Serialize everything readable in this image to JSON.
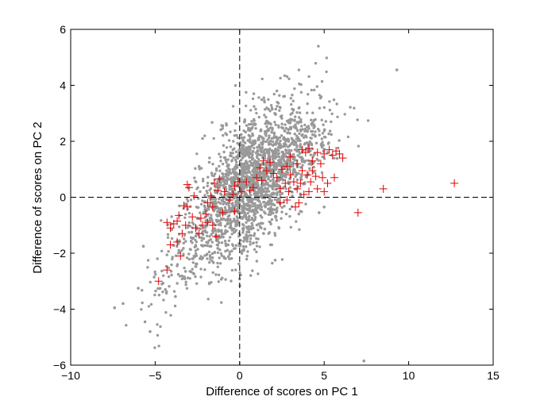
{
  "chart_data": {
    "type": "scatter",
    "title": "",
    "xlabel": "Difference of scores on PC 1",
    "ylabel": "Difference of scores on PC 2",
    "xlim": [
      -10,
      15
    ],
    "ylim": [
      -6,
      6
    ],
    "x_ticks": [
      -10,
      -5,
      0,
      5,
      10,
      15
    ],
    "y_ticks": [
      -6,
      -4,
      -2,
      0,
      2,
      4,
      6
    ],
    "grid": false,
    "legend": "none",
    "reference_lines": [
      {
        "orientation": "vertical",
        "value": 0,
        "style": "dashed",
        "color": "#000000"
      },
      {
        "orientation": "horizontal",
        "value": 0,
        "style": "dashed",
        "color": "#000000"
      }
    ],
    "series": [
      {
        "marker": "dot",
        "color": "#999999",
        "points": [
          [
            9.3,
            4.55
          ],
          [
            7.35,
            -5.85
          ],
          [
            -7.4,
            -3.95
          ],
          [
            -6.9,
            -3.8
          ],
          [
            -5.3,
            -4.8
          ],
          [
            -5.6,
            -4.45
          ],
          [
            -6.0,
            -3.25
          ],
          [
            -5.7,
            -1.75
          ],
          [
            -3.8,
            -3.55
          ],
          [
            -4.6,
            -3.1
          ],
          [
            -4.4,
            -3.3
          ],
          [
            2.2,
            3.8
          ],
          [
            2.6,
            3.6
          ],
          [
            3.6,
            2.7
          ],
          [
            4.4,
            2.75
          ],
          [
            1.7,
            3.15
          ],
          [
            -2.2,
            2.1
          ],
          [
            -1.0,
            2.55
          ],
          [
            3.9,
            2.2
          ],
          [
            5.2,
            1.6
          ],
          [
            5.0,
            -0.35
          ],
          [
            4.7,
            -0.55
          ],
          [
            3.5,
            -0.6
          ],
          [
            2.1,
            -2.25
          ],
          [
            1.9,
            -1.7
          ],
          [
            -0.6,
            -2.2
          ],
          [
            -1.7,
            -1.75
          ],
          [
            -3.2,
            -2.65
          ],
          [
            -2.7,
            -2.1
          ],
          [
            -3.6,
            -1.9
          ],
          [
            -2.4,
            1.1
          ],
          [
            -1.8,
            1.25
          ],
          [
            1.5,
            2.35
          ],
          [
            3.0,
            2.5
          ]
        ]
      },
      {
        "marker": "plus",
        "color": "#e00000",
        "points": [
          [
            12.7,
            0.5
          ],
          [
            8.5,
            0.3
          ],
          [
            7.0,
            -0.55
          ],
          [
            6.1,
            1.4
          ],
          [
            5.9,
            1.55
          ],
          [
            5.7,
            1.65
          ],
          [
            5.5,
            1.5
          ],
          [
            5.3,
            1.7
          ],
          [
            5.0,
            1.55
          ],
          [
            4.8,
            1.2
          ],
          [
            4.6,
            1.6
          ],
          [
            4.3,
            1.3
          ],
          [
            4.1,
            1.75
          ],
          [
            3.9,
            1.6
          ],
          [
            3.7,
            1.7
          ],
          [
            5.6,
            0.7
          ],
          [
            5.2,
            0.5
          ],
          [
            4.9,
            0.7
          ],
          [
            4.5,
            0.75
          ],
          [
            4.3,
            0.95
          ],
          [
            4.0,
            0.8
          ],
          [
            3.7,
            0.95
          ],
          [
            3.4,
            1.2
          ],
          [
            3.0,
            1.45
          ],
          [
            2.8,
            1.1
          ],
          [
            2.5,
            1.0
          ],
          [
            2.2,
            0.7
          ],
          [
            2.0,
            0.85
          ],
          [
            1.8,
            1.25
          ],
          [
            1.6,
            0.95
          ],
          [
            1.3,
            0.6
          ],
          [
            1.0,
            0.7
          ],
          [
            0.8,
            0.35
          ],
          [
            0.6,
            0.25
          ],
          [
            0.4,
            0.55
          ],
          [
            3.2,
            0.55
          ],
          [
            3.0,
            0.8
          ],
          [
            2.7,
            0.5
          ],
          [
            2.4,
            0.3
          ],
          [
            2.9,
            0.2
          ],
          [
            3.4,
            0.3
          ],
          [
            3.6,
            0.5
          ],
          [
            3.8,
            0.1
          ],
          [
            4.1,
            0.2
          ],
          [
            3.5,
            -0.2
          ],
          [
            3.3,
            -0.35
          ],
          [
            2.8,
            -0.1
          ],
          [
            2.4,
            -0.2
          ],
          [
            4.2,
            0.55
          ],
          [
            4.6,
            0.3
          ],
          [
            5.0,
            0.2
          ],
          [
            1.4,
            1.3
          ],
          [
            1.2,
            1.05
          ],
          [
            0.1,
            0.2
          ],
          [
            -0.1,
            0.55
          ],
          [
            -0.4,
            0.1
          ],
          [
            -0.3,
            -0.5
          ],
          [
            -0.6,
            -0.1
          ],
          [
            -0.9,
            0.2
          ],
          [
            -1.3,
            0.25
          ],
          [
            -1.5,
            0.5
          ],
          [
            -1.2,
            0.65
          ],
          [
            -1.7,
            0.05
          ],
          [
            -1.9,
            -0.2
          ],
          [
            -2.0,
            -0.6
          ],
          [
            -2.3,
            -0.75
          ],
          [
            -2.6,
            -1.1
          ],
          [
            -3.0,
            0.35
          ],
          [
            -3.1,
            0.45
          ],
          [
            -3.1,
            -0.35
          ],
          [
            -3.3,
            -0.3
          ],
          [
            -3.6,
            -0.65
          ],
          [
            -3.7,
            -0.85
          ],
          [
            -3.9,
            -0.95
          ],
          [
            -4.1,
            -1.1
          ],
          [
            -4.3,
            -0.9
          ],
          [
            -4.1,
            -1.7
          ],
          [
            -3.7,
            -1.6
          ],
          [
            -3.4,
            -1.3
          ],
          [
            -3.2,
            -1.0
          ],
          [
            -2.4,
            -1.3
          ],
          [
            -2.2,
            -1.0
          ],
          [
            -1.9,
            -0.9
          ],
          [
            -1.6,
            -1.0
          ],
          [
            -1.4,
            -1.4
          ],
          [
            -2.8,
            -0.7
          ],
          [
            -3.5,
            -2.1
          ],
          [
            -4.3,
            -2.6
          ],
          [
            -4.8,
            -3.0
          ],
          [
            -1.6,
            -0.35
          ],
          [
            -1.0,
            -0.55
          ],
          [
            -0.3,
            0.4
          ],
          [
            -2.7,
            0.05
          ]
        ]
      }
    ],
    "background_cloud": [
      {
        "cx": 0.8,
        "cy": 0.6,
        "rx": 1.9,
        "ry": 1.0,
        "angle": 38,
        "count": 1700,
        "color": "#999999"
      },
      {
        "cx": -2.3,
        "cy": -1.3,
        "rx": 2.4,
        "ry": 0.75,
        "angle": 42,
        "count": 260,
        "color": "#999999"
      },
      {
        "cx": 3.0,
        "cy": 1.3,
        "rx": 1.8,
        "ry": 0.55,
        "angle": 25,
        "count": 260,
        "color": "#999999"
      }
    ]
  }
}
